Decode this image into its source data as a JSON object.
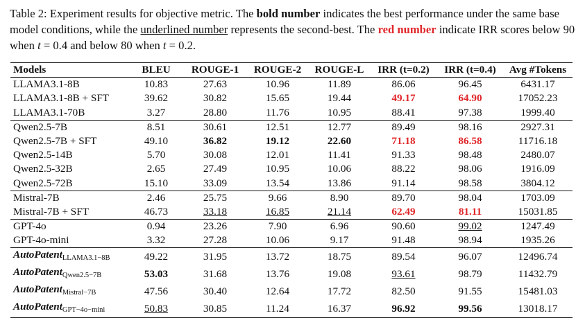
{
  "caption": [
    {
      "text": "Table 2: Experiment results for objective metric. The "
    },
    {
      "text": "bold number",
      "bold": true
    },
    {
      "text": " indicates the best performance under the same base model conditions, while the "
    },
    {
      "text": "underlined number",
      "underline": true
    },
    {
      "text": " represents the second-best. The "
    },
    {
      "text": "red number",
      "bold": true,
      "color": "#e0262a"
    },
    {
      "text": " indicate IRR scores below 90 when "
    },
    {
      "text": "t",
      "italic": true
    },
    {
      "text": " = 0.4 and below 80 when "
    },
    {
      "text": "t",
      "italic": true
    },
    {
      "text": " = 0.2."
    }
  ],
  "table": {
    "header": [
      "Models",
      "BLEU",
      "ROUGE-1",
      "ROUGE-2",
      "ROUGE-L",
      "IRR (t=0.2)",
      "IRR (t=0.4)",
      "Avg #Tokens"
    ],
    "groups": [
      {
        "rows": [
          [
            "LLAMA3.1-8B",
            "10.83",
            "27.63",
            "10.96",
            "11.89",
            "86.06",
            "96.45",
            "6431.17"
          ],
          [
            "LLAMA3.1-8B + SFT",
            "39.62",
            "30.82",
            "15.65",
            "19.44",
            {
              "text": "49.17",
              "bold": true,
              "color": "#e0262a"
            },
            {
              "text": "64.90",
              "bold": true,
              "color": "#e0262a"
            },
            "17052.23"
          ],
          [
            "LLAMA3.1-70B",
            "3.27",
            "28.80",
            "11.76",
            "10.95",
            "88.41",
            "97.38",
            "1999.40"
          ]
        ]
      },
      {
        "rows": [
          [
            "Qwen2.5-7B",
            "8.51",
            "30.61",
            "12.51",
            "12.77",
            "89.49",
            "98.16",
            "2927.31"
          ],
          [
            "Qwen2.5-7B + SFT",
            "49.10",
            {
              "text": "36.82",
              "bold": true
            },
            {
              "text": "19.12",
              "bold": true
            },
            {
              "text": "22.60",
              "bold": true
            },
            {
              "text": "71.18",
              "bold": true,
              "color": "#e0262a"
            },
            {
              "text": "86.58",
              "bold": true,
              "color": "#e0262a"
            },
            "11716.18"
          ],
          [
            "Qwen2.5-14B",
            "5.70",
            "30.08",
            "12.01",
            "11.41",
            "91.33",
            "98.48",
            "2480.07"
          ],
          [
            "Qwen2.5-32B",
            "2.65",
            "27.49",
            "10.95",
            "10.06",
            "88.22",
            "98.06",
            "1916.09"
          ],
          [
            "Qwen2.5-72B",
            "15.10",
            "33.09",
            "13.54",
            "13.86",
            "91.14",
            "98.58",
            "3804.12"
          ]
        ]
      },
      {
        "rows": [
          [
            "Mistral-7B",
            "2.46",
            "25.75",
            "9.66",
            "8.90",
            "89.70",
            "98.04",
            "1703.09"
          ],
          [
            "Mistral-7B + SFT",
            "46.73",
            {
              "text": "33.18",
              "underline": true
            },
            {
              "text": "16.85",
              "underline": true
            },
            {
              "text": "21.14",
              "underline": true
            },
            {
              "text": "62.49",
              "bold": true,
              "color": "#e0262a"
            },
            {
              "text": "81.11",
              "bold": true,
              "color": "#e0262a"
            },
            "15031.85"
          ]
        ]
      },
      {
        "rows": [
          [
            "GPT-4o",
            "0.94",
            "23.26",
            "7.90",
            "6.96",
            "90.60",
            {
              "text": "99.02",
              "underline": true
            },
            "1247.49"
          ],
          [
            "GPT-4o-mini",
            "3.32",
            "27.28",
            "10.06",
            "9.17",
            "91.48",
            "98.94",
            "1935.26"
          ]
        ]
      },
      {
        "rows": [
          [
            {
              "text": "AutoPatent",
              "sub": "LLAMA3.1−8B",
              "bold": true,
              "italic": true
            },
            "49.22",
            "31.95",
            "13.72",
            "18.75",
            "89.54",
            "96.07",
            "12496.74"
          ],
          [
            {
              "text": "AutoPatent",
              "sub": "Qwen2.5−7B",
              "bold": true,
              "italic": true
            },
            {
              "text": "53.03",
              "bold": true
            },
            "31.68",
            "13.76",
            "19.08",
            {
              "text": "93.61",
              "underline": true
            },
            "98.79",
            "11432.79"
          ],
          [
            {
              "text": "AutoPatent",
              "sub": "Mistral−7B",
              "bold": true,
              "italic": true
            },
            "47.56",
            "30.40",
            "12.64",
            "17.72",
            "82.50",
            "91.55",
            "15481.03"
          ],
          [
            {
              "text": "AutoPatent",
              "sub": "GPT−4o−mini",
              "bold": true,
              "italic": true
            },
            {
              "text": "50.83",
              "underline": true
            },
            "30.85",
            "11.24",
            "16.37",
            {
              "text": "96.92",
              "bold": true
            },
            {
              "text": "99.56",
              "bold": true
            },
            "13018.17"
          ]
        ]
      }
    ]
  }
}
